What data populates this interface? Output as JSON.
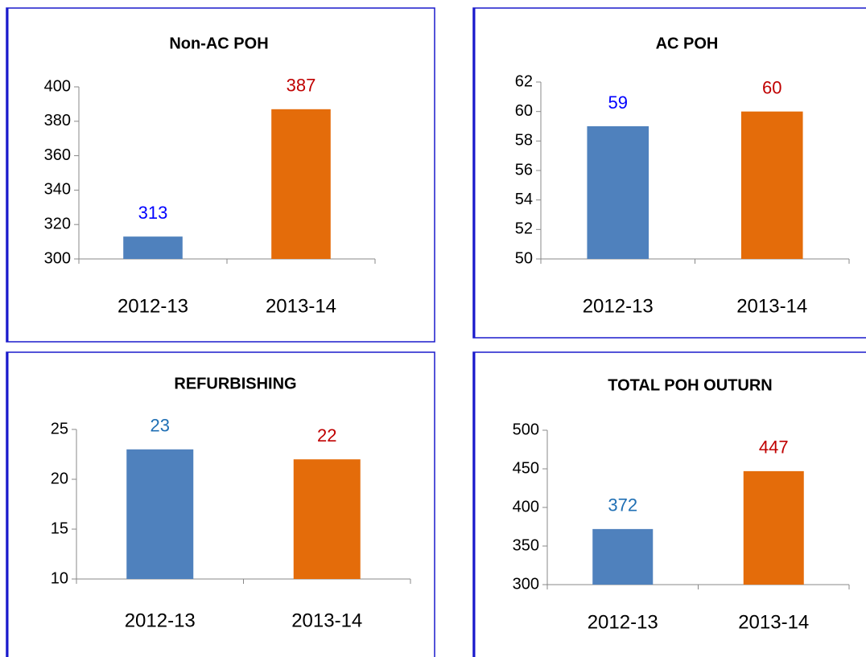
{
  "chart_data": [
    {
      "type": "bar",
      "title": "Non-AC POH",
      "categories": [
        "2012-13",
        "2013-14"
      ],
      "values": [
        313,
        387
      ],
      "colors": [
        "#4f81bd",
        "#e46c0a"
      ],
      "value_label_colors": [
        "#0000ff",
        "#c00000"
      ],
      "ylim": [
        300,
        400
      ],
      "yticks": [
        300,
        320,
        340,
        360,
        380,
        400
      ]
    },
    {
      "type": "bar",
      "title": "AC POH",
      "categories": [
        "2012-13",
        "2013-14"
      ],
      "values": [
        59,
        60
      ],
      "colors": [
        "#4f81bd",
        "#e46c0a"
      ],
      "value_label_colors": [
        "#0000ff",
        "#c00000"
      ],
      "ylim": [
        50,
        62
      ],
      "yticks": [
        50,
        52,
        54,
        56,
        58,
        60,
        62
      ]
    },
    {
      "type": "bar",
      "title": "REFURBISHING",
      "categories": [
        "2012-13",
        "2013-14"
      ],
      "values": [
        23,
        22
      ],
      "colors": [
        "#4f81bd",
        "#e46c0a"
      ],
      "value_label_colors": [
        "#1f6fb4",
        "#c00000"
      ],
      "ylim": [
        10,
        25
      ],
      "yticks": [
        10,
        15,
        20,
        25
      ]
    },
    {
      "type": "bar",
      "title": "TOTAL POH OUTURN",
      "categories": [
        "2012-13",
        "2013-14"
      ],
      "values": [
        372,
        447
      ],
      "colors": [
        "#4f81bd",
        "#e46c0a"
      ],
      "value_label_colors": [
        "#1f6fb4",
        "#c00000"
      ],
      "ylim": [
        300,
        500
      ],
      "yticks": [
        300,
        350,
        400,
        450,
        500
      ]
    }
  ]
}
